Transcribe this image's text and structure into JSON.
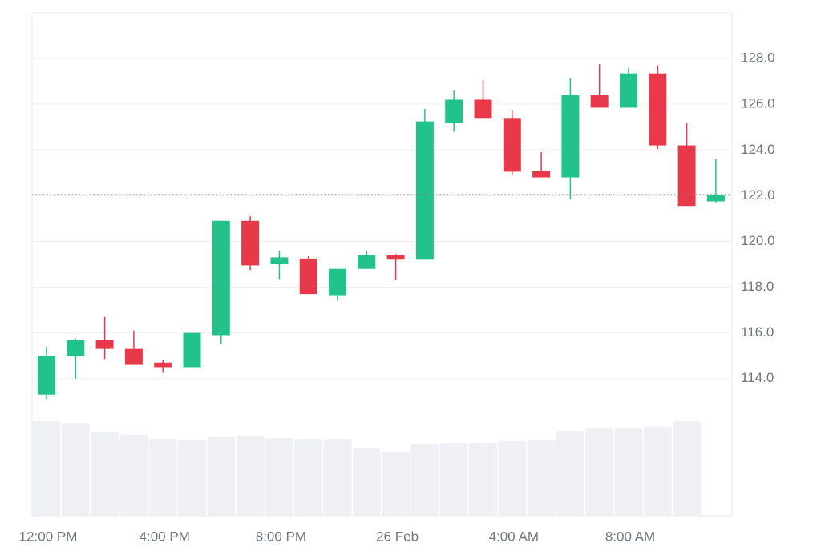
{
  "chart_data": {
    "type": "candlestick",
    "categories": [
      "12:00 PM",
      null,
      null,
      null,
      "4:00 PM",
      null,
      null,
      null,
      "8:00 PM",
      null,
      null,
      null,
      "26 Feb",
      null,
      null,
      null,
      "4:00 AM",
      null,
      null,
      null,
      "8:00 AM",
      null,
      null,
      null
    ],
    "open": [
      113.3,
      115.0,
      115.7,
      115.3,
      114.7,
      114.5,
      115.9,
      120.9,
      119.0,
      119.25,
      117.65,
      118.8,
      119.4,
      119.2,
      125.2,
      126.2,
      125.4,
      123.1,
      122.8,
      126.4,
      125.85,
      127.35,
      124.2,
      121.75
    ],
    "high": [
      115.4,
      115.75,
      116.7,
      116.1,
      114.8,
      116.0,
      120.9,
      121.1,
      119.6,
      119.35,
      118.8,
      119.6,
      119.45,
      125.8,
      126.6,
      127.05,
      125.75,
      123.9,
      127.15,
      127.75,
      127.6,
      127.7,
      125.2,
      123.6
    ],
    "low": [
      113.1,
      114.0,
      114.85,
      114.6,
      114.25,
      114.5,
      115.5,
      118.75,
      118.35,
      117.7,
      117.4,
      118.8,
      118.3,
      119.2,
      124.8,
      125.4,
      122.9,
      122.8,
      121.85,
      125.85,
      125.85,
      124.05,
      121.55,
      121.7
    ],
    "close": [
      115.0,
      115.7,
      115.3,
      114.6,
      114.5,
      116.0,
      120.9,
      118.95,
      119.3,
      117.7,
      118.8,
      119.4,
      119.2,
      125.25,
      126.2,
      125.4,
      123.05,
      122.8,
      126.4,
      125.85,
      127.35,
      124.2,
      121.55,
      122.05
    ],
    "volume": [
      118,
      116,
      104,
      101,
      96,
      94,
      98,
      99,
      97,
      96,
      96,
      84,
      80,
      89,
      91,
      91,
      93,
      94,
      106,
      109,
      109,
      111,
      118,
      null
    ],
    "volume_ylim": [
      0,
      628
    ],
    "up_color": "#22c38a",
    "down_color": "#e8394a",
    "volume_color": "#eef0f3",
    "last_price": 122.05,
    "ylim": [
      108,
      130
    ],
    "yticks": [
      {
        "value": 114,
        "label": "114.0"
      },
      {
        "value": 116,
        "label": "116.0"
      },
      {
        "value": 118,
        "label": "118.0"
      },
      {
        "value": 120,
        "label": "120.0"
      },
      {
        "value": 122,
        "label": "122.0"
      },
      {
        "value": 124,
        "label": "124.0"
      },
      {
        "value": 126,
        "label": "126.0"
      },
      {
        "value": 128,
        "label": "128.0"
      }
    ],
    "grid": true
  }
}
